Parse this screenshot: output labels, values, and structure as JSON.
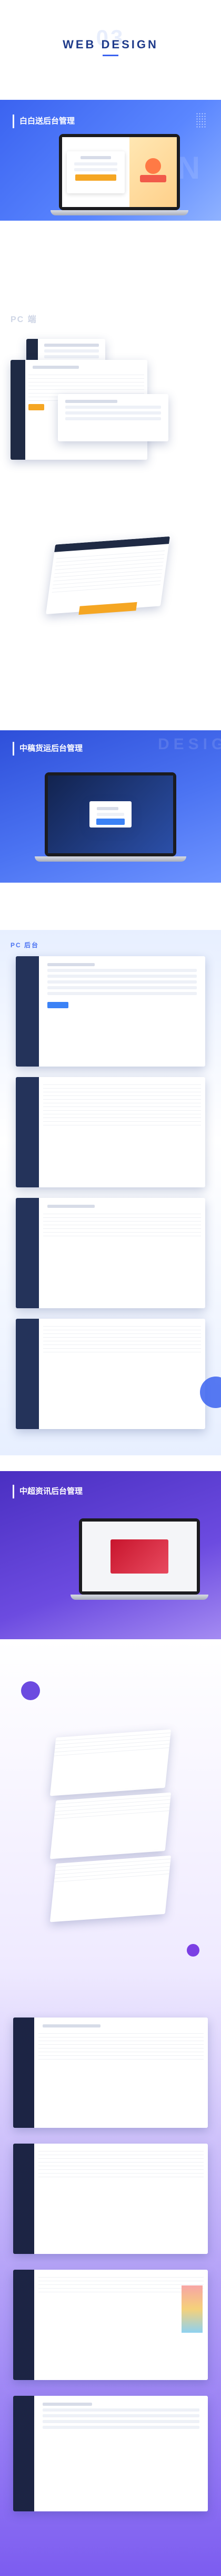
{
  "hero": {
    "title": "WEB   DESIGN",
    "ghost_number": "03",
    "ghost_word": "DESIGN"
  },
  "sections": [
    {
      "id": "s1",
      "title": "白白送后台管理"
    },
    {
      "id": "s2",
      "title": "中稿货运后台管理",
      "ghost_word": "DESIGN"
    },
    {
      "id": "s3",
      "title": "中超资讯后台管理"
    }
  ],
  "labels": {
    "pc_label": "PC 端",
    "pc_label_2": "PC 后台"
  },
  "colors": {
    "brand_blue": "#3b63f0",
    "navy": "#1f2a44",
    "purple": "#5b3cc4",
    "orange": "#f5a623"
  }
}
